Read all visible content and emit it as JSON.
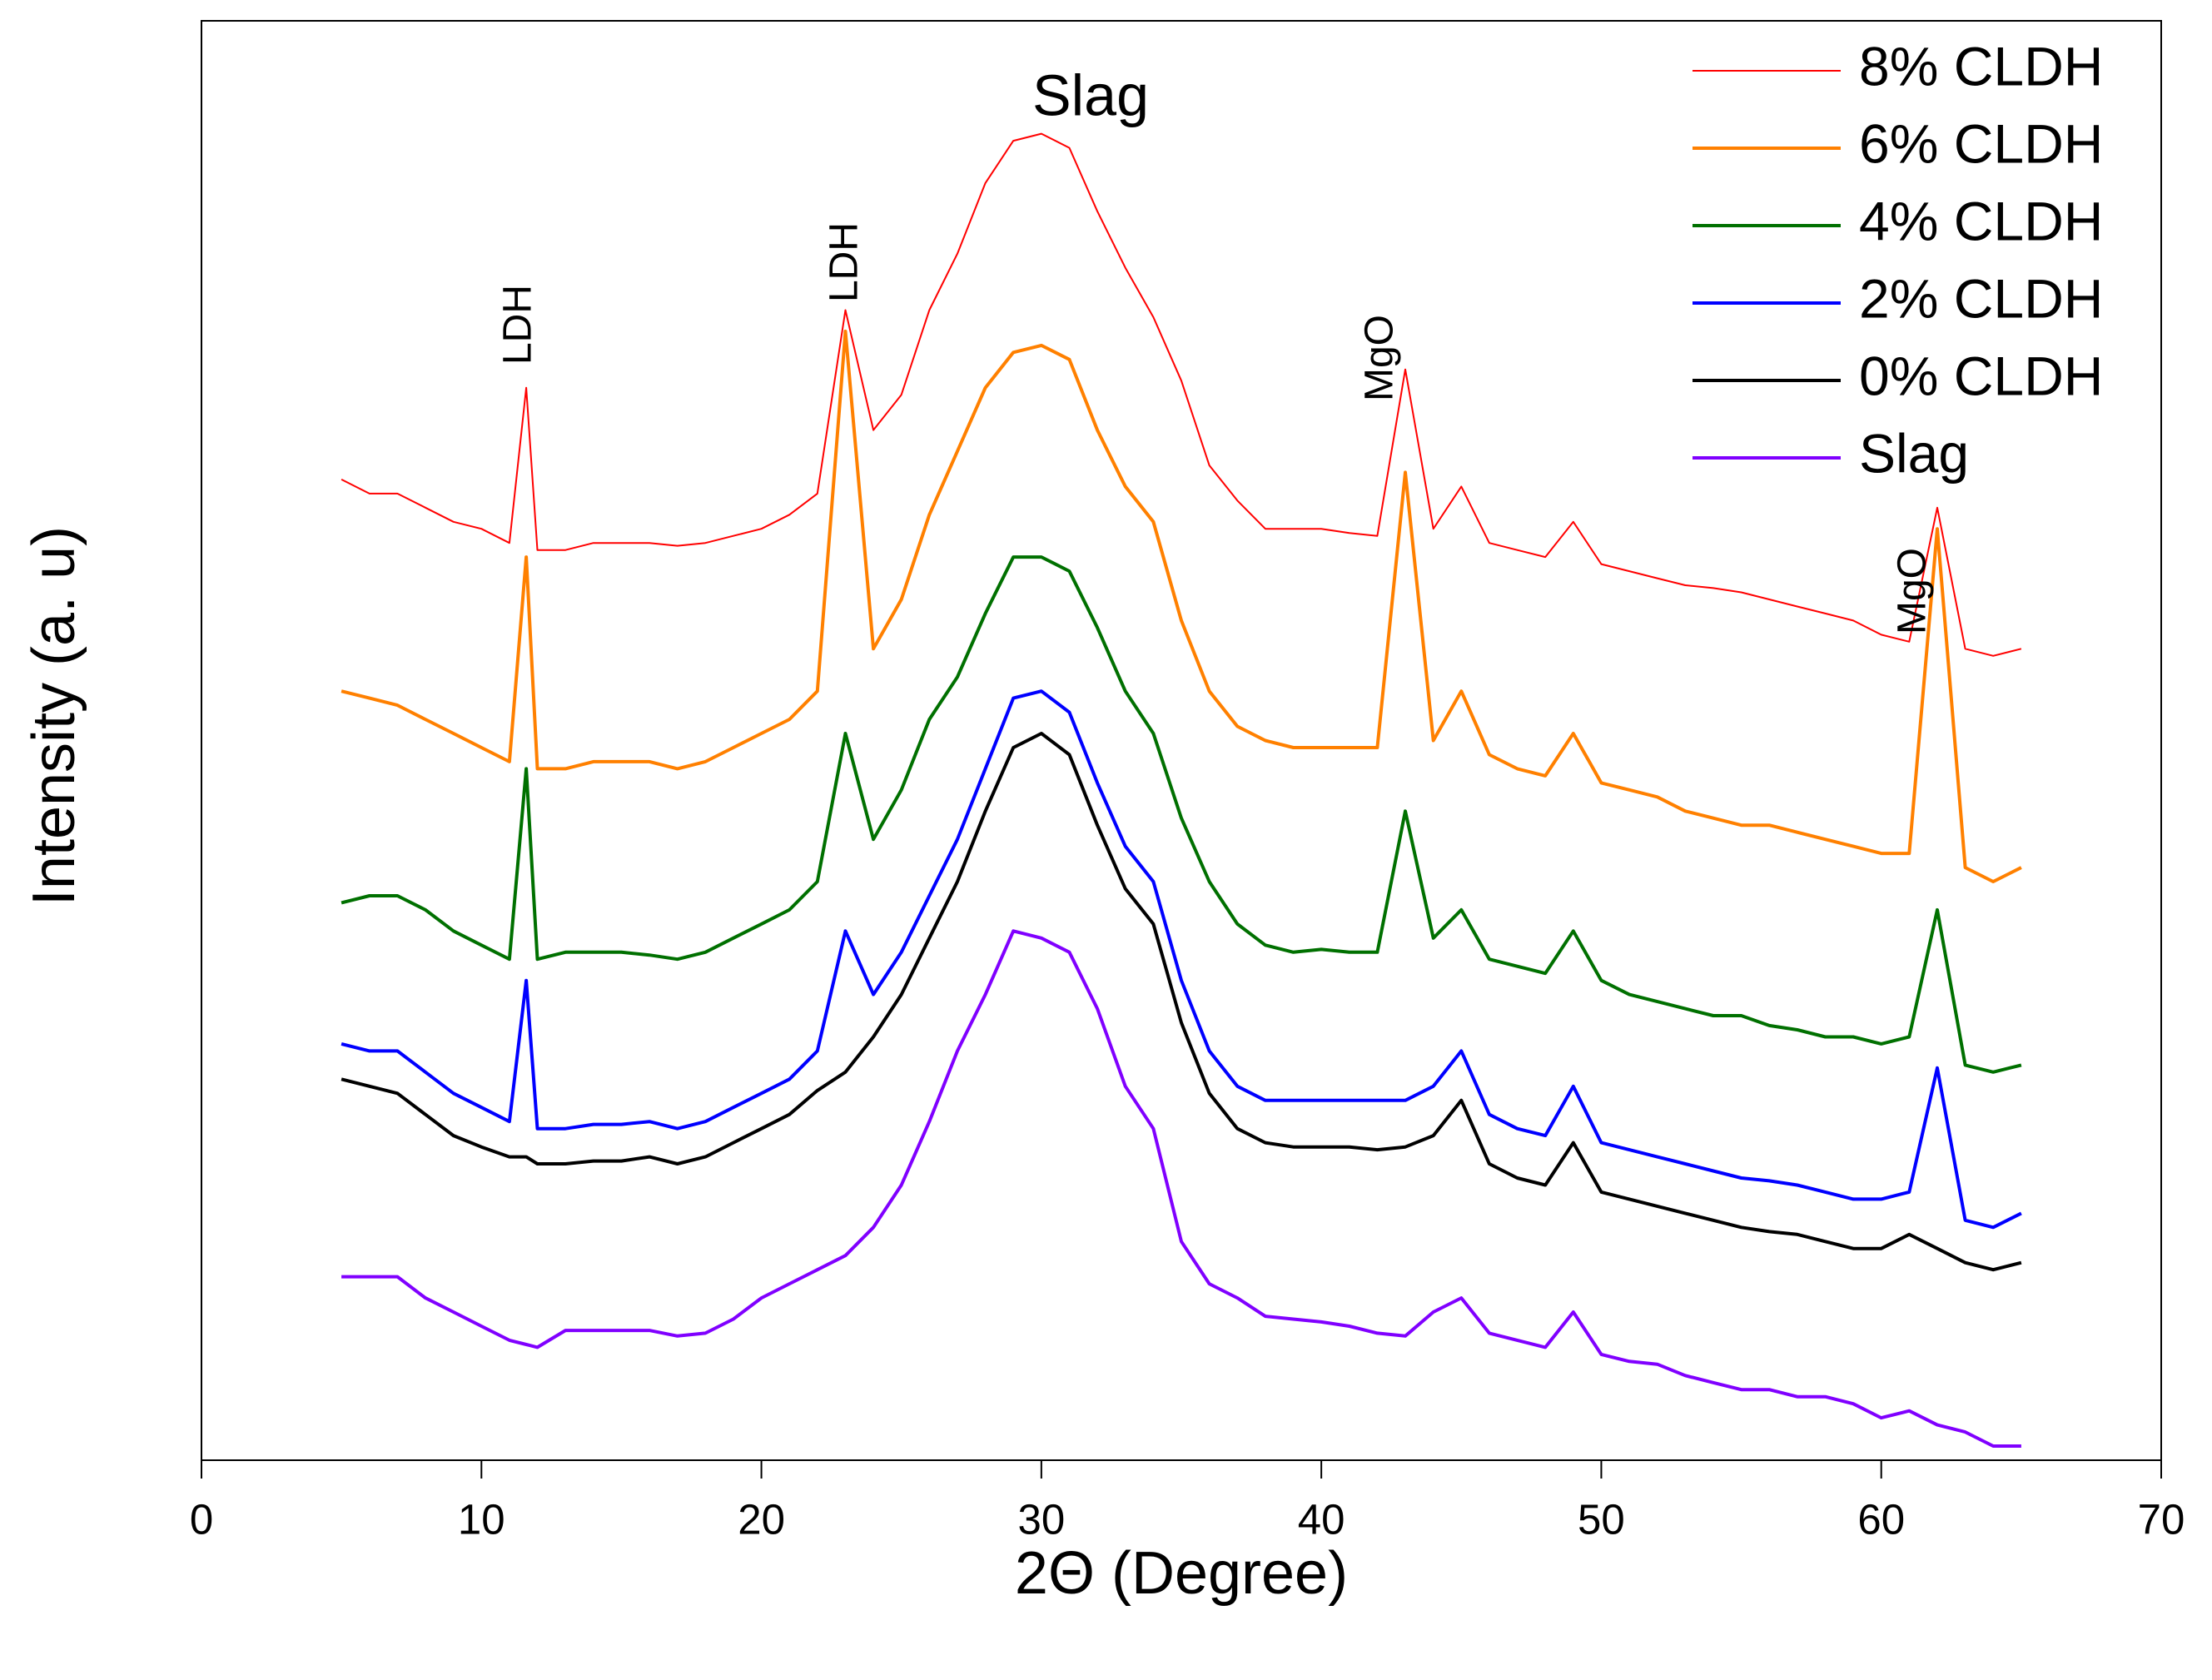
{
  "chart_data": {
    "type": "line",
    "xlabel": "2Θ (Degree)",
    "ylabel": "Intensity (a. u)",
    "annotations": [
      "Slag",
      "LDH",
      "LDH",
      "MgO",
      "MgO"
    ],
    "legend": "top-right",
    "xlim": [
      0,
      70
    ],
    "xticks": [
      0,
      10,
      20,
      30,
      40,
      50,
      60,
      70
    ],
    "ylim": [
      0,
      1020
    ],
    "x": [
      5,
      6,
      7,
      8,
      9,
      10,
      11,
      11.6,
      12,
      13,
      14,
      15,
      16,
      17,
      18,
      19,
      20,
      21,
      22,
      23,
      24,
      25,
      26,
      27,
      28,
      29,
      30,
      31,
      32,
      33,
      34,
      35,
      36,
      37,
      38,
      39,
      40,
      41,
      42,
      43,
      44,
      45,
      46,
      47,
      48,
      49,
      50,
      51,
      52,
      53,
      54,
      55,
      56,
      57,
      58,
      59,
      60,
      61,
      62,
      63,
      64,
      65
    ],
    "series": [
      {
        "name": "8% CLDH",
        "color": "#ff0000",
        "values": [
          695,
          685,
          685,
          675,
          665,
          660,
          650,
          760,
          645,
          645,
          650,
          650,
          650,
          648,
          650,
          655,
          660,
          670,
          685,
          815,
          730,
          755,
          815,
          855,
          905,
          935,
          940,
          930,
          885,
          845,
          810,
          765,
          705,
          680,
          660,
          660,
          660,
          657,
          655,
          773,
          660,
          690,
          650,
          645,
          640,
          665,
          635,
          630,
          625,
          620,
          618,
          615,
          610,
          605,
          600,
          595,
          585,
          580,
          675,
          575,
          570,
          575
        ]
      },
      {
        "name": "6% CLDH",
        "color": "#ff8000",
        "values": [
          545,
          540,
          535,
          525,
          515,
          505,
          495,
          640,
          490,
          490,
          495,
          495,
          495,
          490,
          495,
          505,
          515,
          525,
          545,
          800,
          575,
          610,
          670,
          715,
          760,
          785,
          790,
          780,
          730,
          690,
          665,
          595,
          545,
          520,
          510,
          505,
          505,
          505,
          505,
          700,
          510,
          545,
          500,
          490,
          485,
          515,
          480,
          475,
          470,
          460,
          455,
          450,
          450,
          445,
          440,
          435,
          430,
          430,
          660,
          420,
          410,
          420
        ]
      },
      {
        "name": "4% CLDH",
        "color": "#007000",
        "values": [
          395,
          400,
          400,
          390,
          375,
          365,
          355,
          490,
          355,
          360,
          360,
          360,
          358,
          355,
          360,
          370,
          380,
          390,
          410,
          515,
          440,
          475,
          525,
          555,
          600,
          640,
          640,
          630,
          590,
          545,
          515,
          455,
          410,
          380,
          365,
          360,
          362,
          360,
          360,
          460,
          370,
          390,
          355,
          350,
          345,
          375,
          340,
          330,
          325,
          320,
          315,
          315,
          308,
          305,
          300,
          300,
          295,
          300,
          390,
          280,
          275,
          280
        ]
      },
      {
        "name": "2% CLDH",
        "color": "#0000ff",
        "values": [
          295,
          290,
          290,
          275,
          260,
          250,
          240,
          340,
          235,
          235,
          238,
          238,
          240,
          235,
          240,
          250,
          260,
          270,
          290,
          375,
          330,
          360,
          400,
          440,
          490,
          540,
          545,
          530,
          480,
          435,
          410,
          340,
          290,
          265,
          255,
          255,
          255,
          255,
          255,
          255,
          265,
          290,
          245,
          235,
          230,
          265,
          225,
          220,
          215,
          210,
          205,
          200,
          198,
          195,
          190,
          185,
          185,
          190,
          278,
          170,
          165,
          175
        ]
      },
      {
        "name": "0% CLDH",
        "color": "#000000",
        "values": [
          270,
          265,
          260,
          245,
          230,
          222,
          215,
          215,
          210,
          210,
          212,
          212,
          215,
          210,
          215,
          225,
          235,
          245,
          262,
          275,
          300,
          330,
          370,
          410,
          460,
          505,
          515,
          500,
          450,
          405,
          380,
          310,
          260,
          235,
          225,
          222,
          222,
          222,
          220,
          222,
          230,
          255,
          210,
          200,
          195,
          225,
          190,
          185,
          180,
          175,
          170,
          165,
          162,
          160,
          155,
          150,
          150,
          160,
          150,
          140,
          135,
          140
        ]
      },
      {
        "name": "Slag",
        "color": "#8000ff",
        "values": [
          130,
          130,
          130,
          115,
          105,
          95,
          85,
          82,
          80,
          92,
          92,
          92,
          92,
          88,
          90,
          100,
          115,
          125,
          135,
          145,
          165,
          195,
          240,
          290,
          330,
          375,
          370,
          360,
          320,
          265,
          235,
          155,
          125,
          115,
          102,
          100,
          98,
          95,
          90,
          88,
          105,
          115,
          90,
          85,
          80,
          105,
          75,
          70,
          68,
          60,
          55,
          50,
          50,
          45,
          45,
          40,
          30,
          35,
          25,
          20,
          10,
          10
        ]
      }
    ]
  }
}
